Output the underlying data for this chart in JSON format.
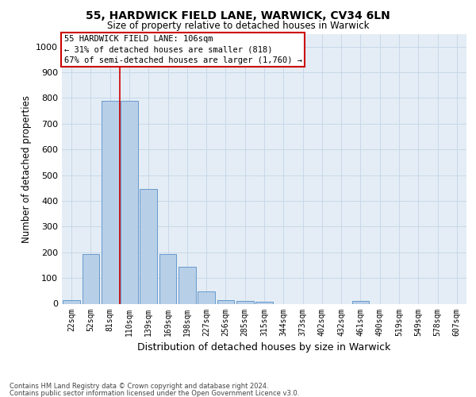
{
  "title_line1": "55, HARDWICK FIELD LANE, WARWICK, CV34 6LN",
  "title_line2": "Size of property relative to detached houses in Warwick",
  "xlabel": "Distribution of detached houses by size in Warwick",
  "ylabel": "Number of detached properties",
  "bar_labels": [
    "22sqm",
    "52sqm",
    "81sqm",
    "110sqm",
    "139sqm",
    "169sqm",
    "198sqm",
    "227sqm",
    "256sqm",
    "285sqm",
    "315sqm",
    "344sqm",
    "373sqm",
    "402sqm",
    "432sqm",
    "461sqm",
    "490sqm",
    "519sqm",
    "549sqm",
    "578sqm",
    "607sqm"
  ],
  "bar_values": [
    15,
    193,
    790,
    790,
    445,
    193,
    143,
    48,
    13,
    10,
    8,
    0,
    0,
    0,
    0,
    10,
    0,
    0,
    0,
    0,
    0
  ],
  "bar_color": "#b8cfe8",
  "bar_edge_color": "#6699cc",
  "property_line_x": 2.5,
  "annotation_line1": "55 HARDWICK FIELD LANE: 106sqm",
  "annotation_line2": "← 31% of detached houses are smaller (818)",
  "annotation_line3": "67% of semi-detached houses are larger (1,760) →",
  "annotation_box_color": "#ffffff",
  "annotation_box_edge_color": "#cc0000",
  "vline_color": "#cc0000",
  "ylim": [
    0,
    1050
  ],
  "yticks": [
    0,
    100,
    200,
    300,
    400,
    500,
    600,
    700,
    800,
    900,
    1000
  ],
  "grid_color": "#c8d8e8",
  "bg_color": "#e4edf5",
  "footnote_line1": "Contains HM Land Registry data © Crown copyright and database right 2024.",
  "footnote_line2": "Contains public sector information licensed under the Open Government Licence v3.0."
}
